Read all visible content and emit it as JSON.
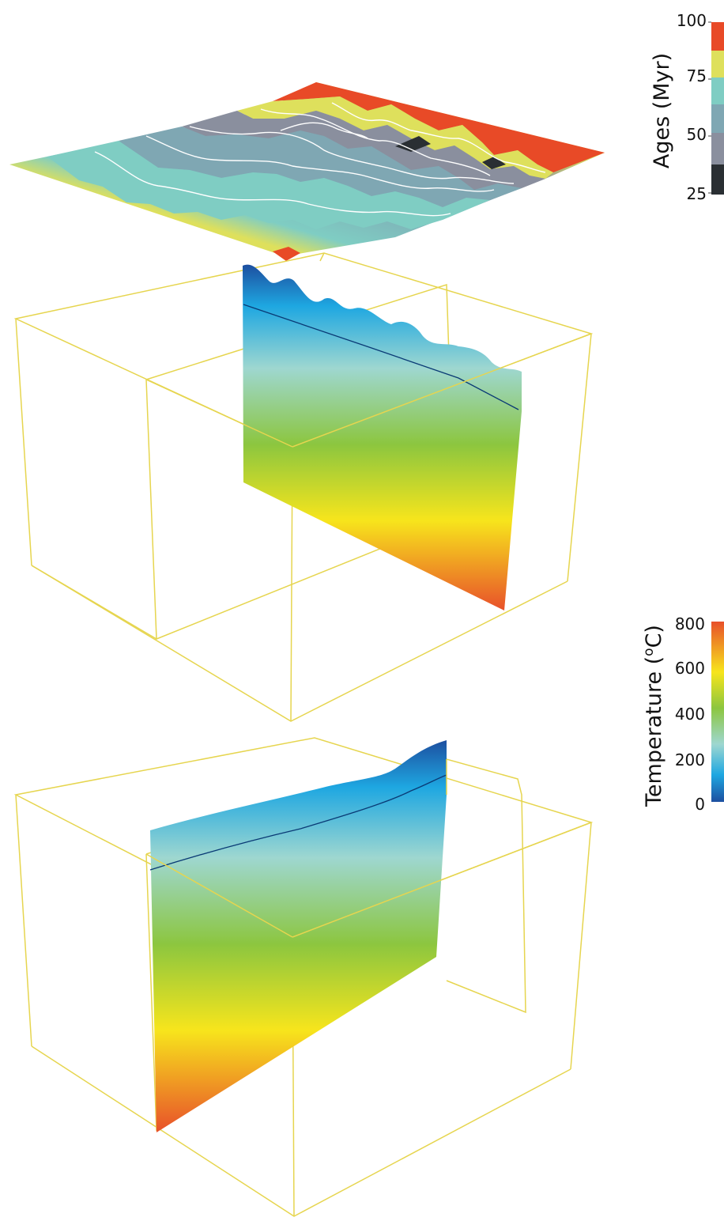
{
  "ages_colorbar": {
    "title": "Ages (Myr)",
    "ticks": [
      "100",
      "75",
      "50",
      "25"
    ],
    "bands": [
      "#e84a27",
      "#dee05c",
      "#7fcdc3",
      "#7fa7b3",
      "#8a8f9e",
      "#2a2f33"
    ]
  },
  "temperature_colorbar": {
    "title_main": "Temperature (",
    "title_sup": "o",
    "title_tail": "C)",
    "ticks": [
      "800",
      "600",
      "400",
      "200",
      "0"
    ],
    "gradient": [
      "#e8502a",
      "#f7e51c",
      "#8cc63f",
      "#9ed7d0",
      "#1ea7e1",
      "#1d4fa0"
    ]
  },
  "colors": {
    "box_edges": "#e6d54f",
    "isotherm": "#0a3a75",
    "contours": "#ffffff"
  }
}
